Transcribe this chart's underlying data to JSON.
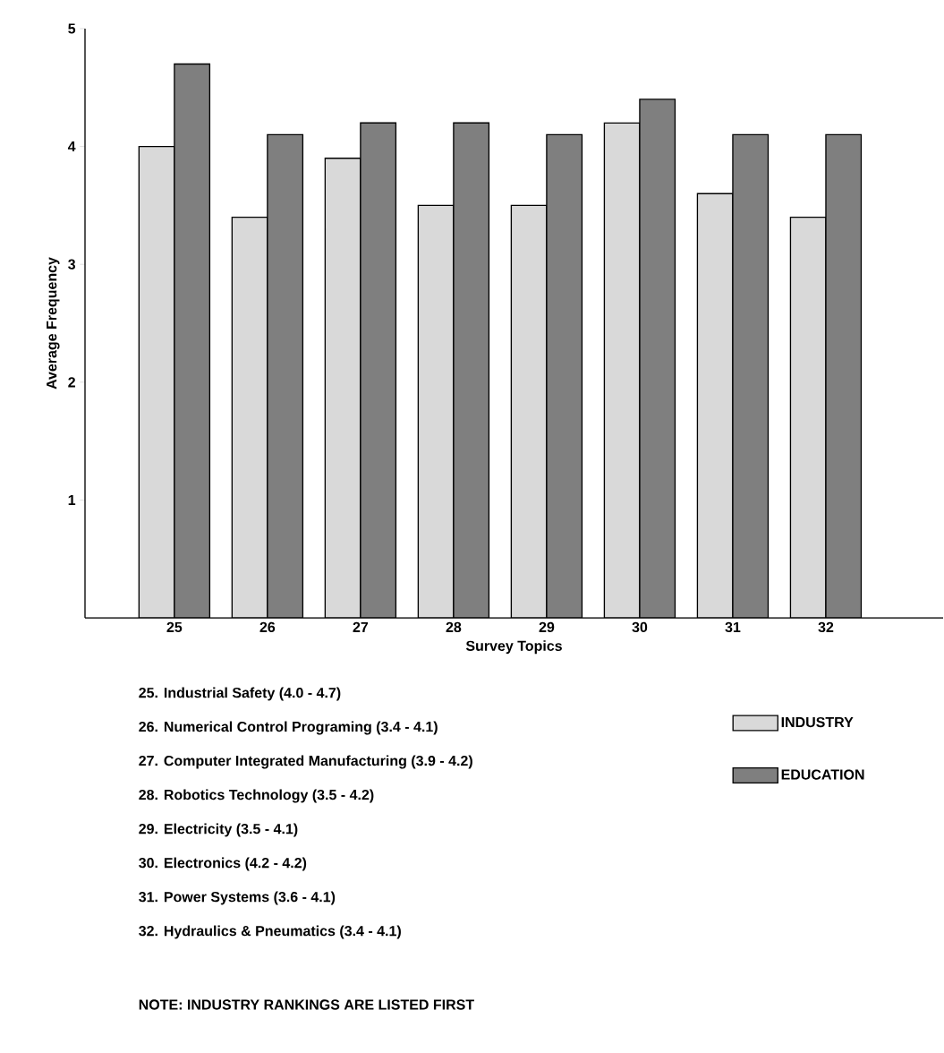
{
  "chart_data": {
    "type": "bar",
    "xlabel": "Survey Topics",
    "ylabel": "Average Frequency",
    "categories": [
      "25",
      "26",
      "27",
      "28",
      "29",
      "30",
      "31",
      "32"
    ],
    "series": [
      {
        "name": "INDUSTRY",
        "color": "#d9d9d9",
        "values": [
          4.0,
          3.4,
          3.9,
          3.5,
          3.5,
          4.2,
          3.6,
          3.4
        ]
      },
      {
        "name": "EDUCATION",
        "color": "#7f7f7f",
        "values": [
          4.7,
          4.1,
          4.2,
          4.2,
          4.1,
          4.4,
          4.1,
          4.1
        ]
      }
    ],
    "ylim": [
      0,
      5
    ],
    "yticks": [
      1,
      2,
      3,
      4,
      5
    ],
    "grid": false,
    "legend": "bottom right",
    "annotations": [
      "25. Industrial Safety  (4.0 - 4.7)",
      "26. Numerical Control Programing  (3.4 - 4.1)",
      "27. Computer Integrated Manufacturing  (3.9 - 4.2)",
      "28. Robotics Technology  (3.5 - 4.2)",
      "29. Electricity  (3.5 - 4.1)",
      "30. Electronics  (4.2 - 4.2)",
      "31. Power Systems  (3.6 - 4.1)",
      "32. Hydraulics & Pneumatics  (3.4 - 4.1)",
      "NOTE: INDUSTRY RANKINGS ARE LISTED FIRST"
    ]
  }
}
